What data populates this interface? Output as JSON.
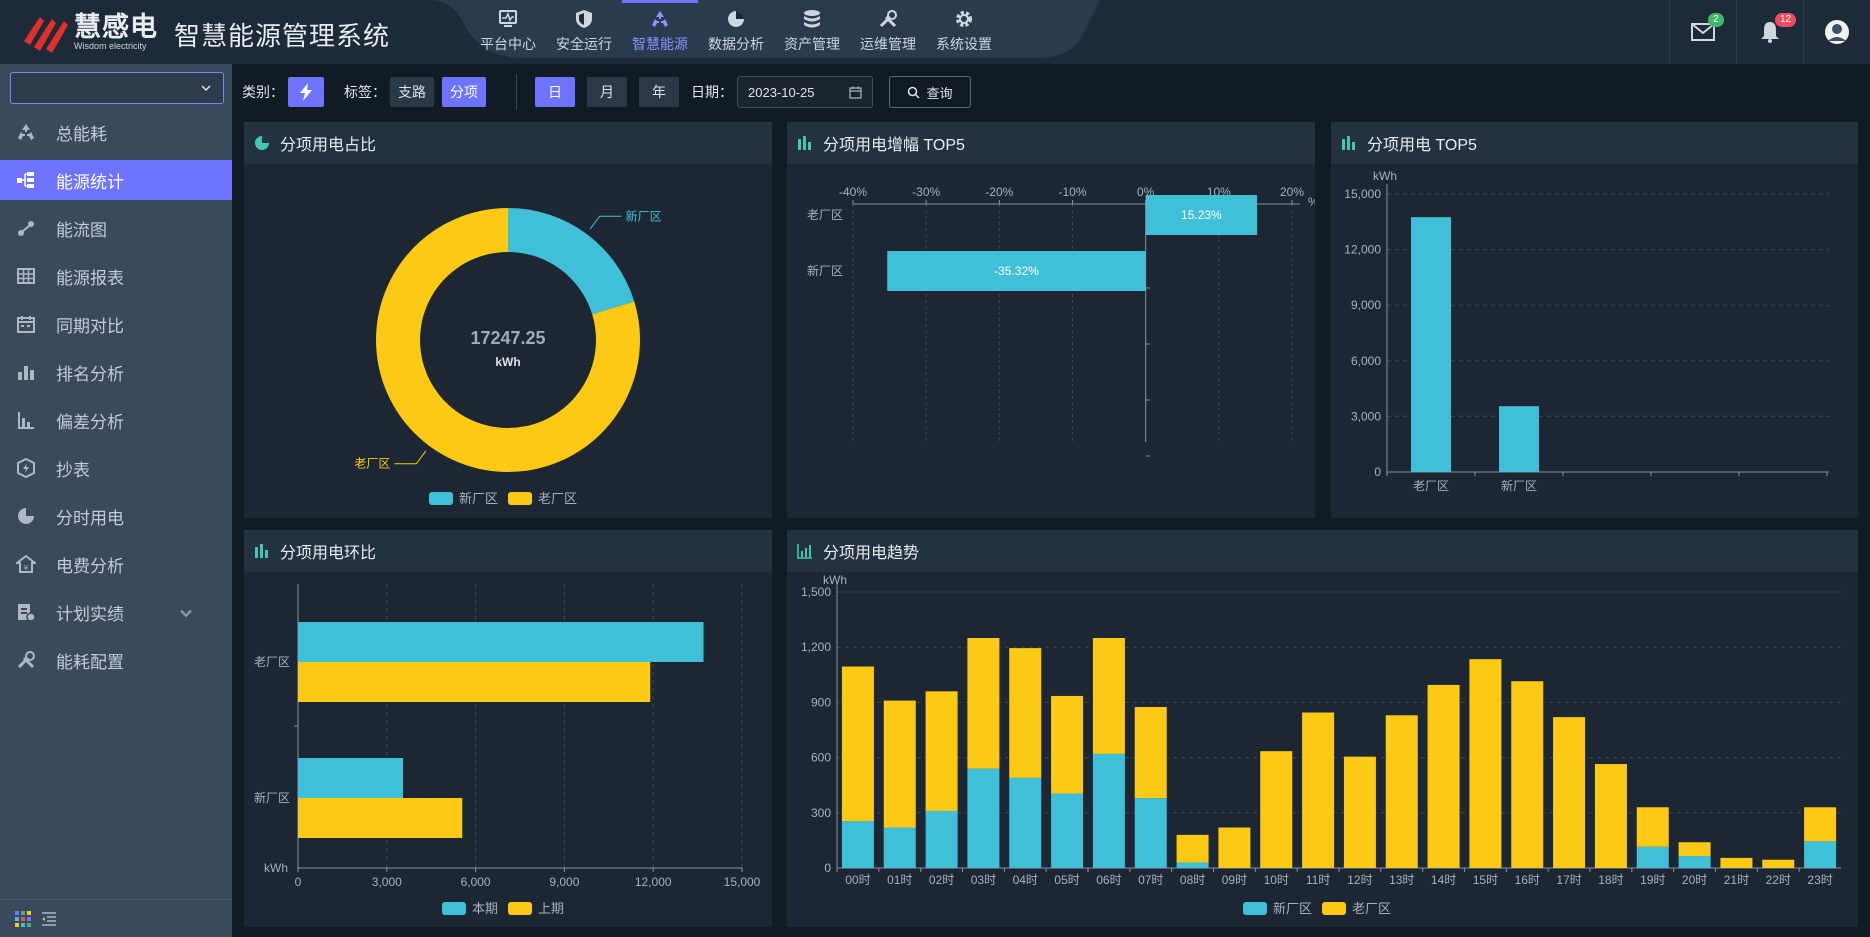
{
  "app": {
    "brand_cn": "慧感电",
    "brand_en": "Wisdom electricity",
    "title": "智慧能源管理系统"
  },
  "nav": [
    {
      "label": "平台中心",
      "icon": "monitor-icon"
    },
    {
      "label": "安全运行",
      "icon": "shield-icon"
    },
    {
      "label": "智慧能源",
      "icon": "recycle-icon",
      "active": true
    },
    {
      "label": "数据分析",
      "icon": "pie-icon"
    },
    {
      "label": "资产管理",
      "icon": "database-icon"
    },
    {
      "label": "运维管理",
      "icon": "tools-icon"
    },
    {
      "label": "系统设置",
      "icon": "gear-icon"
    }
  ],
  "header": {
    "mail_count": "2",
    "bell_count": "12"
  },
  "sidebar": {
    "select_value": "",
    "items": [
      {
        "label": "总能耗",
        "icon": "recycle-icon"
      },
      {
        "label": "能源统计",
        "icon": "tree-icon",
        "active": true
      },
      {
        "label": "能流图",
        "icon": "flow-icon"
      },
      {
        "label": "能源报表",
        "icon": "table-icon"
      },
      {
        "label": "同期对比",
        "icon": "calendar-icon"
      },
      {
        "label": "排名分析",
        "icon": "ranking-icon"
      },
      {
        "label": "偏差分析",
        "icon": "deviation-icon"
      },
      {
        "label": "抄表",
        "icon": "meter-icon"
      },
      {
        "label": "分时用电",
        "icon": "pie-icon"
      },
      {
        "label": "电费分析",
        "icon": "home-icon"
      },
      {
        "label": "计划实绩",
        "icon": "plan-icon",
        "expandable": true
      },
      {
        "label": "能耗配置",
        "icon": "config-icon"
      }
    ]
  },
  "toolbar": {
    "category_label": "类别：",
    "tag_label": "标签：",
    "tag_branch": "支路",
    "tag_item": "分项",
    "day": "日",
    "month": "月",
    "year": "年",
    "date_label": "日期：",
    "date_value": "2023-10-25",
    "query": "查询"
  },
  "panels": {
    "share_title": "分项用电占比",
    "growth_title": "分项用电增幅 TOP5",
    "top5_title": "分项用电 TOP5",
    "mom_title": "分项用电环比",
    "trend_title": "分项用电趋势"
  },
  "colors": {
    "cyan": "#40bfd8",
    "yellow": "#fcca14",
    "accent": "#6e74ff"
  },
  "chart_data": [
    {
      "type": "pie",
      "center_value": "17247.25",
      "center_unit": "kWh",
      "categories": [
        "新厂区",
        "老厂区"
      ],
      "values": [
        3500,
        13747.25
      ],
      "legend": [
        "新厂区",
        "老厂区"
      ]
    },
    {
      "type": "bar",
      "orientation": "horizontal",
      "categories": [
        "老厂区",
        "新厂区"
      ],
      "values": [
        15.23,
        -35.32
      ],
      "labels": [
        "15.23%",
        "-35.32%"
      ],
      "xlim": [
        -40,
        20
      ],
      "xticks": [
        "-40%",
        "-30%",
        "-20%",
        "-10%",
        "0%",
        "10%",
        "20%"
      ],
      "xunit": "%"
    },
    {
      "type": "bar",
      "categories": [
        "老厂区",
        "新厂区"
      ],
      "values": [
        13750,
        3550
      ],
      "ylim": [
        0,
        15000
      ],
      "yticks": [
        "0",
        "3,000",
        "6,000",
        "9,000",
        "12,000",
        "15,000"
      ],
      "ylabel": "kWh"
    },
    {
      "type": "bar",
      "orientation": "horizontal",
      "categories": [
        "老厂区",
        "新厂区"
      ],
      "series": [
        {
          "name": "本期",
          "values": [
            13700,
            3550
          ]
        },
        {
          "name": "上期",
          "values": [
            11900,
            5550
          ]
        }
      ],
      "xlim": [
        0,
        15000
      ],
      "xticks": [
        "0",
        "3,000",
        "6,000",
        "9,000",
        "12,000",
        "15,000"
      ],
      "xlabel": "kWh"
    },
    {
      "type": "bar",
      "stacked": true,
      "categories": [
        "00时",
        "01时",
        "02时",
        "03时",
        "04时",
        "05时",
        "06时",
        "07时",
        "08时",
        "09时",
        "10时",
        "11时",
        "12时",
        "13时",
        "14时",
        "15时",
        "16时",
        "17时",
        "18时",
        "19时",
        "20时",
        "21时",
        "22时",
        "23时"
      ],
      "series": [
        {
          "name": "新厂区",
          "values": [
            255,
            220,
            310,
            540,
            490,
            405,
            620,
            380,
            30,
            0,
            0,
            0,
            0,
            0,
            0,
            0,
            0,
            0,
            0,
            115,
            65,
            0,
            0,
            145
          ]
        },
        {
          "name": "老厂区",
          "values": [
            840,
            690,
            650,
            710,
            705,
            530,
            630,
            495,
            150,
            220,
            635,
            845,
            605,
            830,
            995,
            1135,
            1015,
            820,
            565,
            215,
            75,
            55,
            45,
            185
          ]
        }
      ],
      "ylim": [
        0,
        1500
      ],
      "yticks": [
        "0",
        "300",
        "600",
        "900",
        "1,200",
        "1,500"
      ],
      "ylabel": "kWh"
    }
  ]
}
